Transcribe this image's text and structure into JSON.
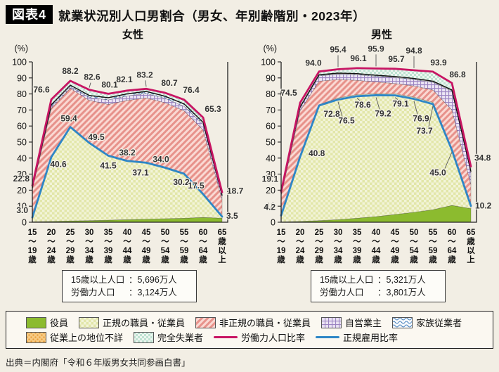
{
  "header": {
    "badge": "図表4",
    "title": "就業状況別人口男割合（男女、年別齢階別・2023年）"
  },
  "y_axis": {
    "unit": "(%)",
    "range": [
      0,
      100
    ],
    "ticks": [
      0,
      10,
      20,
      30,
      40,
      50,
      60,
      70,
      80,
      90,
      100
    ]
  },
  "chart_data": [
    {
      "type": "area",
      "title": "女性",
      "categories": [
        "15〜19歳",
        "20〜24歳",
        "25〜29歳",
        "30〜34歳",
        "35〜39歳",
        "40〜44歳",
        "45〜49歳",
        "50〜54歳",
        "55〜59歳",
        "60〜64歳",
        "65歳以上"
      ],
      "lines": [
        {
          "name": "労働力人口比率",
          "color_key": "labor_line",
          "values": [
            22.8,
            76.6,
            88.2,
            82.6,
            80.1,
            82.1,
            83.2,
            80.7,
            76.4,
            65.3,
            18.7
          ]
        },
        {
          "name": "正規雇用比率",
          "color_key": "regular_line",
          "values": [
            3.0,
            40.6,
            59.4,
            49.5,
            41.5,
            38.2,
            37.1,
            34.0,
            30.2,
            17.5,
            3.5
          ]
        }
      ],
      "stack_cumulative_tops": [
        {
          "name": "役員",
          "values": [
            0.3,
            0.5,
            0.8,
            1.0,
            1.3,
            1.6,
            1.9,
            2.2,
            2.5,
            3.0,
            2.5
          ]
        },
        {
          "name": "正規の職員・従業員",
          "values": [
            3.5,
            41.1,
            59.9,
            50.0,
            42.0,
            38.7,
            37.6,
            34.5,
            30.7,
            18.0,
            4.0
          ]
        },
        {
          "name": "非正規の職員・従業員",
          "values": [
            20.5,
            71.0,
            83.5,
            76.0,
            73.5,
            76.0,
            77.5,
            74.5,
            69.5,
            57.5,
            14.0
          ]
        },
        {
          "name": "自営業主",
          "values": [
            21.0,
            72.3,
            84.6,
            77.8,
            76.3,
            78.8,
            80.3,
            77.3,
            72.3,
            61.0,
            16.2
          ]
        },
        {
          "name": "家族従業者",
          "values": [
            21.4,
            73.1,
            85.3,
            78.8,
            77.4,
            79.8,
            81.3,
            78.3,
            73.5,
            62.0,
            16.6
          ]
        },
        {
          "name": "従業上の地位不詳",
          "values": [
            21.5,
            73.3,
            85.5,
            79.1,
            77.7,
            80.1,
            81.6,
            78.6,
            73.8,
            62.3,
            16.8
          ]
        },
        {
          "name": "完全失業者",
          "values": [
            22.8,
            76.6,
            88.2,
            82.6,
            80.1,
            82.1,
            83.2,
            80.7,
            76.4,
            65.3,
            18.7
          ]
        }
      ],
      "info_box": {
        "rows": [
          {
            "label": "15歳以上人口",
            "value": "5,696万人"
          },
          {
            "label": "労働力人口",
            "value": "3,124万人"
          }
        ]
      }
    },
    {
      "type": "area",
      "title": "男性",
      "categories": [
        "15〜19歳",
        "20〜24歳",
        "25〜29歳",
        "30〜34歳",
        "35〜39歳",
        "40〜44歳",
        "45〜49歳",
        "50〜54歳",
        "55〜59歳",
        "60〜64歳",
        "65歳以上"
      ],
      "lines": [
        {
          "name": "労働力人口比率",
          "color_key": "labor_line",
          "values": [
            19.1,
            74.5,
            94.0,
            95.4,
            96.1,
            95.9,
            95.7,
            94.8,
            93.9,
            86.8,
            34.8
          ]
        },
        {
          "name": "正規雇用比率",
          "color_key": "regular_line",
          "values": [
            4.2,
            40.8,
            72.8,
            76.5,
            78.6,
            79.2,
            79.1,
            76.9,
            73.7,
            45.0,
            10.2
          ]
        }
      ],
      "stack_cumulative_tops": [
        {
          "name": "役員",
          "values": [
            0.2,
            0.5,
            1.0,
            1.6,
            2.5,
            3.5,
            4.8,
            6.2,
            7.8,
            10.5,
            8.5
          ]
        },
        {
          "name": "正規の職員・従業員",
          "values": [
            4.7,
            41.3,
            73.3,
            77.5,
            79.6,
            80.2,
            80.1,
            78.0,
            74.8,
            46.0,
            11.0
          ]
        },
        {
          "name": "非正規の職員・従業員",
          "values": [
            16.8,
            69.5,
            88.0,
            89.0,
            88.5,
            87.5,
            86.5,
            85.0,
            82.5,
            70.0,
            23.5
          ]
        },
        {
          "name": "自営業主",
          "values": [
            17.8,
            71.3,
            91.3,
            92.3,
            92.0,
            91.0,
            90.2,
            89.0,
            87.3,
            81.8,
            31.0
          ]
        },
        {
          "name": "家族従業者",
          "values": [
            18.0,
            71.7,
            91.7,
            92.7,
            92.4,
            91.4,
            90.6,
            89.4,
            87.7,
            82.2,
            31.4
          ]
        },
        {
          "name": "従業上の地位不詳",
          "values": [
            18.1,
            71.9,
            92.0,
            93.0,
            92.7,
            91.7,
            90.9,
            89.7,
            88.0,
            82.5,
            31.7
          ]
        },
        {
          "name": "完全失業者",
          "values": [
            19.1,
            74.5,
            94.0,
            95.4,
            96.1,
            95.9,
            95.7,
            94.8,
            93.9,
            86.8,
            34.8
          ]
        }
      ],
      "info_box": {
        "rows": [
          {
            "label": "15歳以上人口",
            "value": "5,321万人"
          },
          {
            "label": "労働力人口",
            "value": "3,801万人"
          }
        ]
      }
    }
  ],
  "legend": {
    "items": [
      {
        "label": "役員",
        "swatch": "green"
      },
      {
        "label": "正規の職員・従業員",
        "swatch": "check"
      },
      {
        "label": "非正規の職員・従業員",
        "swatch": "diag"
      },
      {
        "label": "自営業主",
        "swatch": "grid"
      },
      {
        "label": "家族従業者",
        "swatch": "wave"
      },
      {
        "label": "従業上の地位不詳",
        "swatch": "odots"
      },
      {
        "label": "完全失業者",
        "swatch": "tdots"
      },
      {
        "label": "労働力人口比率",
        "line": "#C81563"
      },
      {
        "label": "正規雇用比率",
        "line": "#2E86C6"
      }
    ]
  },
  "colors": {
    "labor_line": "#C81563",
    "regular_line": "#2E86C6",
    "green": "#8CBB2F",
    "background": "#F2EEE4"
  },
  "source": "出典＝内閣府「令和６年版男女共同参画白書」"
}
